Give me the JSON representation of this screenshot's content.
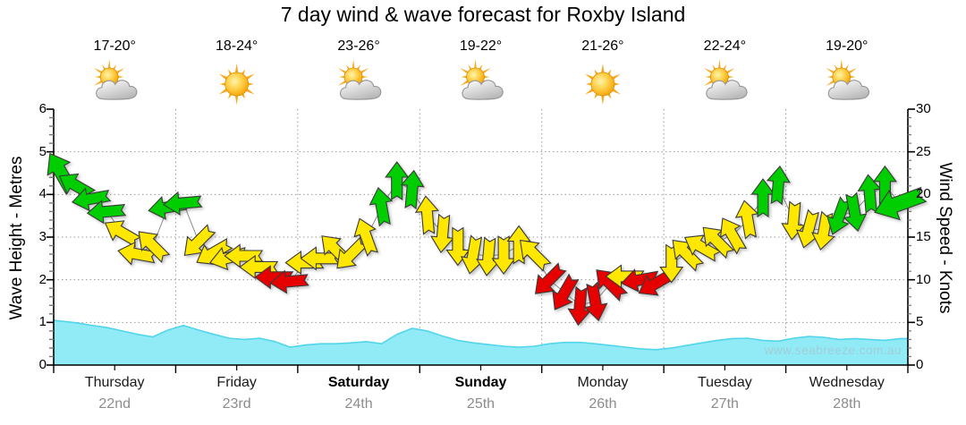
{
  "title": "7 day wind & wave forecast for Roxby Island",
  "watermark": "www.seabreeze.com.au",
  "colors": {
    "green": "#00CE00",
    "yellow": "#FFE700",
    "red": "#E60000",
    "wave_fill": "#90EBF7",
    "wave_edge": "#52D5EA",
    "grid": "#9a9a9a",
    "axis": "#000000",
    "date_text": "#8c8c8c",
    "sun_core": "#FFD24D",
    "sun_edge": "#F59E00",
    "cloud_light": "#FFFFFF",
    "cloud_dark": "#B9B9B9"
  },
  "days": [
    {
      "name": "Thursday",
      "date": "22nd",
      "temp": "17-20°",
      "icon": "sun-cloud",
      "bold": false
    },
    {
      "name": "Friday",
      "date": "23rd",
      "temp": "18-24°",
      "icon": "sun",
      "bold": false
    },
    {
      "name": "Saturday",
      "date": "24th",
      "temp": "23-26°",
      "icon": "sun-cloud",
      "bold": true
    },
    {
      "name": "Sunday",
      "date": "25th",
      "temp": "19-22°",
      "icon": "sun-cloud",
      "bold": true
    },
    {
      "name": "Monday",
      "date": "26th",
      "temp": "21-26°",
      "icon": "sun",
      "bold": false
    },
    {
      "name": "Tuesday",
      "date": "27th",
      "temp": "22-24°",
      "icon": "sun-cloud",
      "bold": false
    },
    {
      "name": "Wednesday",
      "date": "28th",
      "temp": "19-20°",
      "icon": "sun-cloud",
      "bold": false
    }
  ],
  "axes": {
    "left_label": "Wave Height - Metres",
    "right_label": "Wind Speed - Knots"
  },
  "chart_data": {
    "type": "area+vector",
    "title": "7 day wind & wave forecast for Roxby Island",
    "categories": [
      "Thursday 22nd",
      "Friday 23rd",
      "Saturday 24th",
      "Sunday 25th",
      "Monday 26th",
      "Tuesday 27th",
      "Wednesday 28th"
    ],
    "points_per_day": 8,
    "grid": "dotted",
    "left_axis": {
      "label": "Wave Height - Metres",
      "range": [
        0,
        6
      ],
      "ticks": [
        0,
        1,
        2,
        3,
        4,
        5,
        6
      ]
    },
    "right_axis": {
      "label": "Wind Speed - Knots",
      "range": [
        0,
        30
      ],
      "ticks": [
        0,
        5,
        10,
        15,
        20,
        25,
        30
      ]
    },
    "wind_series": {
      "name": "Wind Speed",
      "unit": "knots",
      "axis": "right",
      "dir_convention": "degrees clockwise from up; arrow points toward",
      "points_knots_dir_color": [
        [
          22.5,
          330,
          "g"
        ],
        [
          21.0,
          300,
          "g"
        ],
        [
          19.5,
          260,
          "g"
        ],
        [
          18.0,
          265,
          "g"
        ],
        [
          15.5,
          300,
          "y"
        ],
        [
          13.0,
          280,
          "y"
        ],
        [
          14.0,
          315,
          "y"
        ],
        [
          18.5,
          260,
          "g"
        ],
        [
          19.0,
          265,
          "g"
        ],
        [
          14.5,
          225,
          "y"
        ],
        [
          13.2,
          240,
          "y"
        ],
        [
          12.6,
          255,
          "y"
        ],
        [
          12.8,
          270,
          "y"
        ],
        [
          11.5,
          270,
          "y"
        ],
        [
          10.3,
          270,
          "r"
        ],
        [
          9.8,
          265,
          "r"
        ],
        [
          12.0,
          270,
          "y"
        ],
        [
          12.5,
          270,
          "y"
        ],
        [
          13.5,
          315,
          "y"
        ],
        [
          13.0,
          225,
          "y"
        ],
        [
          15.0,
          340,
          "y"
        ],
        [
          18.5,
          350,
          "g"
        ],
        [
          21.5,
          0,
          "g"
        ],
        [
          20.5,
          5,
          "g"
        ],
        [
          17.5,
          355,
          "y"
        ],
        [
          15.5,
          185,
          "y"
        ],
        [
          14.0,
          180,
          "y"
        ],
        [
          13.0,
          190,
          "y"
        ],
        [
          12.8,
          185,
          "y"
        ],
        [
          13.0,
          180,
          "y"
        ],
        [
          14.0,
          0,
          "y"
        ],
        [
          13.0,
          315,
          "y"
        ],
        [
          10.0,
          225,
          "r"
        ],
        [
          8.5,
          210,
          "r"
        ],
        [
          7.0,
          185,
          "r"
        ],
        [
          7.5,
          170,
          "r"
        ],
        [
          9.5,
          315,
          "r"
        ],
        [
          10.4,
          270,
          "y"
        ],
        [
          10.0,
          260,
          "r"
        ],
        [
          9.6,
          240,
          "r"
        ],
        [
          12.0,
          180,
          "y"
        ],
        [
          13.0,
          315,
          "y"
        ],
        [
          13.8,
          300,
          "y"
        ],
        [
          14.5,
          315,
          "y"
        ],
        [
          15.2,
          330,
          "y"
        ],
        [
          17.0,
          350,
          "y"
        ],
        [
          19.5,
          0,
          "g"
        ],
        [
          21.0,
          5,
          "g"
        ],
        [
          17.0,
          185,
          "y"
        ],
        [
          16.0,
          195,
          "y"
        ],
        [
          15.8,
          190,
          "y"
        ],
        [
          17.5,
          200,
          "g"
        ],
        [
          18.0,
          170,
          "g"
        ],
        [
          20.0,
          355,
          "g"
        ],
        [
          21.0,
          0,
          "g"
        ],
        [
          19.0,
          250,
          "g"
        ]
      ]
    },
    "wave_series": {
      "name": "Wave Height",
      "unit": "metres",
      "axis": "left",
      "values": [
        1.03,
        0.99,
        0.93,
        0.88,
        0.8,
        0.72,
        0.66,
        0.82,
        0.93,
        0.82,
        0.72,
        0.63,
        0.6,
        0.63,
        0.55,
        0.42,
        0.47,
        0.5,
        0.5,
        0.52,
        0.55,
        0.5,
        0.72,
        0.86,
        0.8,
        0.68,
        0.58,
        0.52,
        0.48,
        0.44,
        0.42,
        0.44,
        0.5,
        0.53,
        0.53,
        0.5,
        0.46,
        0.42,
        0.38,
        0.36,
        0.4,
        0.46,
        0.52,
        0.58,
        0.62,
        0.63,
        0.58,
        0.56,
        0.63,
        0.67,
        0.65,
        0.6,
        0.62,
        0.6,
        0.58,
        0.62
      ]
    }
  }
}
